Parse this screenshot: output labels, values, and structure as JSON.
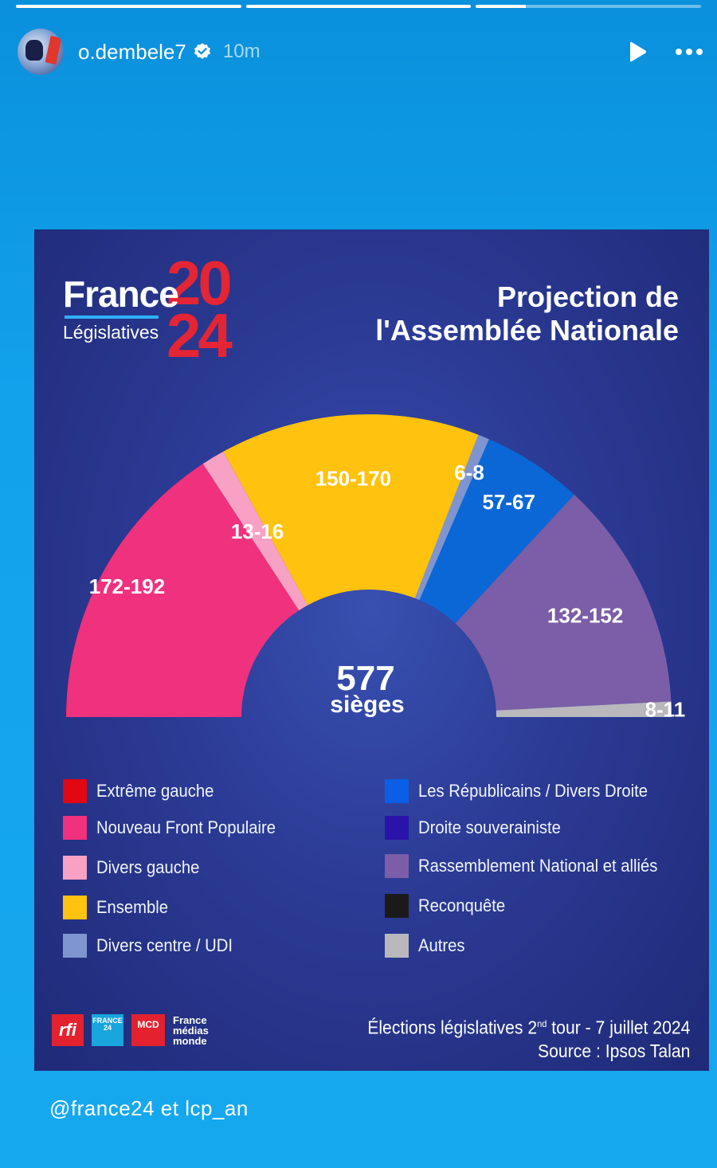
{
  "story": {
    "username": "o.dembele7",
    "time": "10m",
    "progress": [
      1,
      1,
      0.22
    ],
    "caption": "@france24 et lcp_an",
    "icons": [
      "verified-badge-icon",
      "play-icon",
      "more-options-icon"
    ]
  },
  "graphic": {
    "logo": {
      "brand": "France",
      "subtitle": "Législatives",
      "year_top": "20",
      "year_bottom": "24"
    },
    "title_line1": "Projection de",
    "title_line2": "l'Assemblée Nationale",
    "total_value": "577",
    "total_label": "sièges",
    "footer_line1_pre": "Élections législatives 2",
    "footer_line1_sup": "nd",
    "footer_line1_post": " tour - 7 juillet 2024",
    "footer_line2": "Source : Ipsos Talan",
    "partner_logos": {
      "rfi": "rfi",
      "f24": "FRANCE 24",
      "mcd": "MCD",
      "fmm": [
        "France",
        "médias",
        "monde"
      ]
    }
  },
  "legend": [
    {
      "label": "Extrême gauche",
      "color": "#e30613"
    },
    {
      "label": "Nouveau Front Populaire",
      "color": "#f0317d"
    },
    {
      "label": "Divers gauche",
      "color": "#f7a1c4"
    },
    {
      "label": "Ensemble",
      "color": "#ffc20e"
    },
    {
      "label": "Divers centre / UDI",
      "color": "#7f95cf"
    },
    {
      "label": "Les Républicains / Divers Droite",
      "color": "#0a5fe6"
    },
    {
      "label": "Droite souverainiste",
      "color": "#2a13a8"
    },
    {
      "label": "Rassemblement National et alliés",
      "color": "#7b5ea7"
    },
    {
      "label": "Reconquête",
      "color": "#1a1a1a"
    },
    {
      "label": "Autres",
      "color": "#b8b8bd"
    }
  ],
  "chart_data": {
    "type": "hemicycle",
    "total_seats": 577,
    "segments": [
      {
        "label": "172-192",
        "party": "Nouveau Front Populaire",
        "seats": 182,
        "color": "#f0317d"
      },
      {
        "label": "13-16",
        "party": "Divers gauche",
        "seats": 14.5,
        "color": "#f7a1c4"
      },
      {
        "label": "150-170",
        "party": "Ensemble",
        "seats": 160,
        "color": "#ffc20e"
      },
      {
        "label": "6-8",
        "party": "Divers centre / UDI",
        "seats": 7,
        "color": "#7f95cf"
      },
      {
        "label": "57-67",
        "party": "Les Républicains / Divers Droite",
        "seats": 62,
        "color": "#0b67d6"
      },
      {
        "label": "132-152",
        "party": "Rassemblement National et alliés",
        "seats": 142,
        "color": "#7b5ea7"
      },
      {
        "label": "8-11",
        "party": "Autres",
        "seats": 9.5,
        "color": "#b8b8bd"
      }
    ]
  }
}
